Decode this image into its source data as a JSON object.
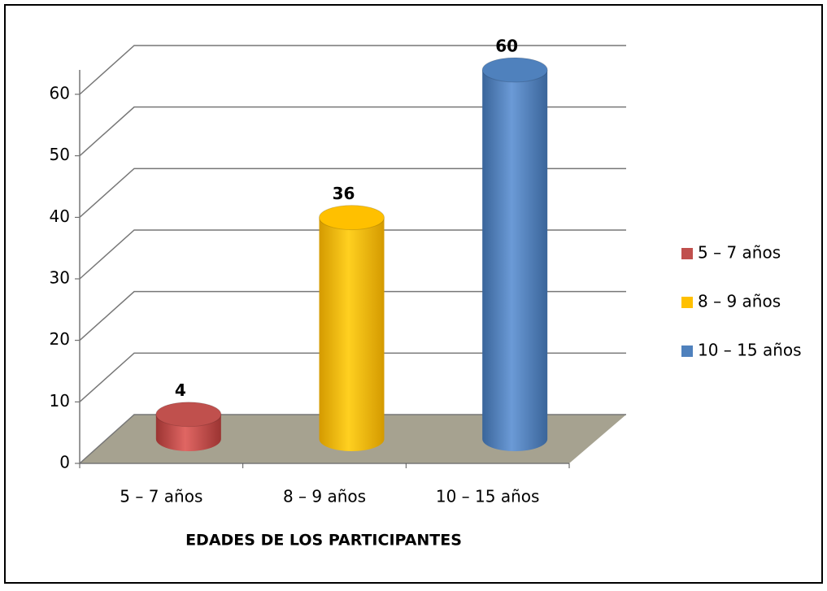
{
  "chart_data": {
    "type": "bar",
    "xlabel": "EDADES DE LOS PARTICIPANTES",
    "categories": [
      "5 – 7 años",
      "8 – 9 años",
      "10 – 15 años"
    ],
    "values": [
      4,
      36,
      60
    ],
    "colors": [
      "#c0504d",
      "#ffc000",
      "#4f81bd"
    ],
    "ylim": [
      0,
      60
    ],
    "yticks": [
      0,
      10,
      20,
      30,
      40,
      50,
      60
    ],
    "grid": true,
    "legend": "right"
  }
}
